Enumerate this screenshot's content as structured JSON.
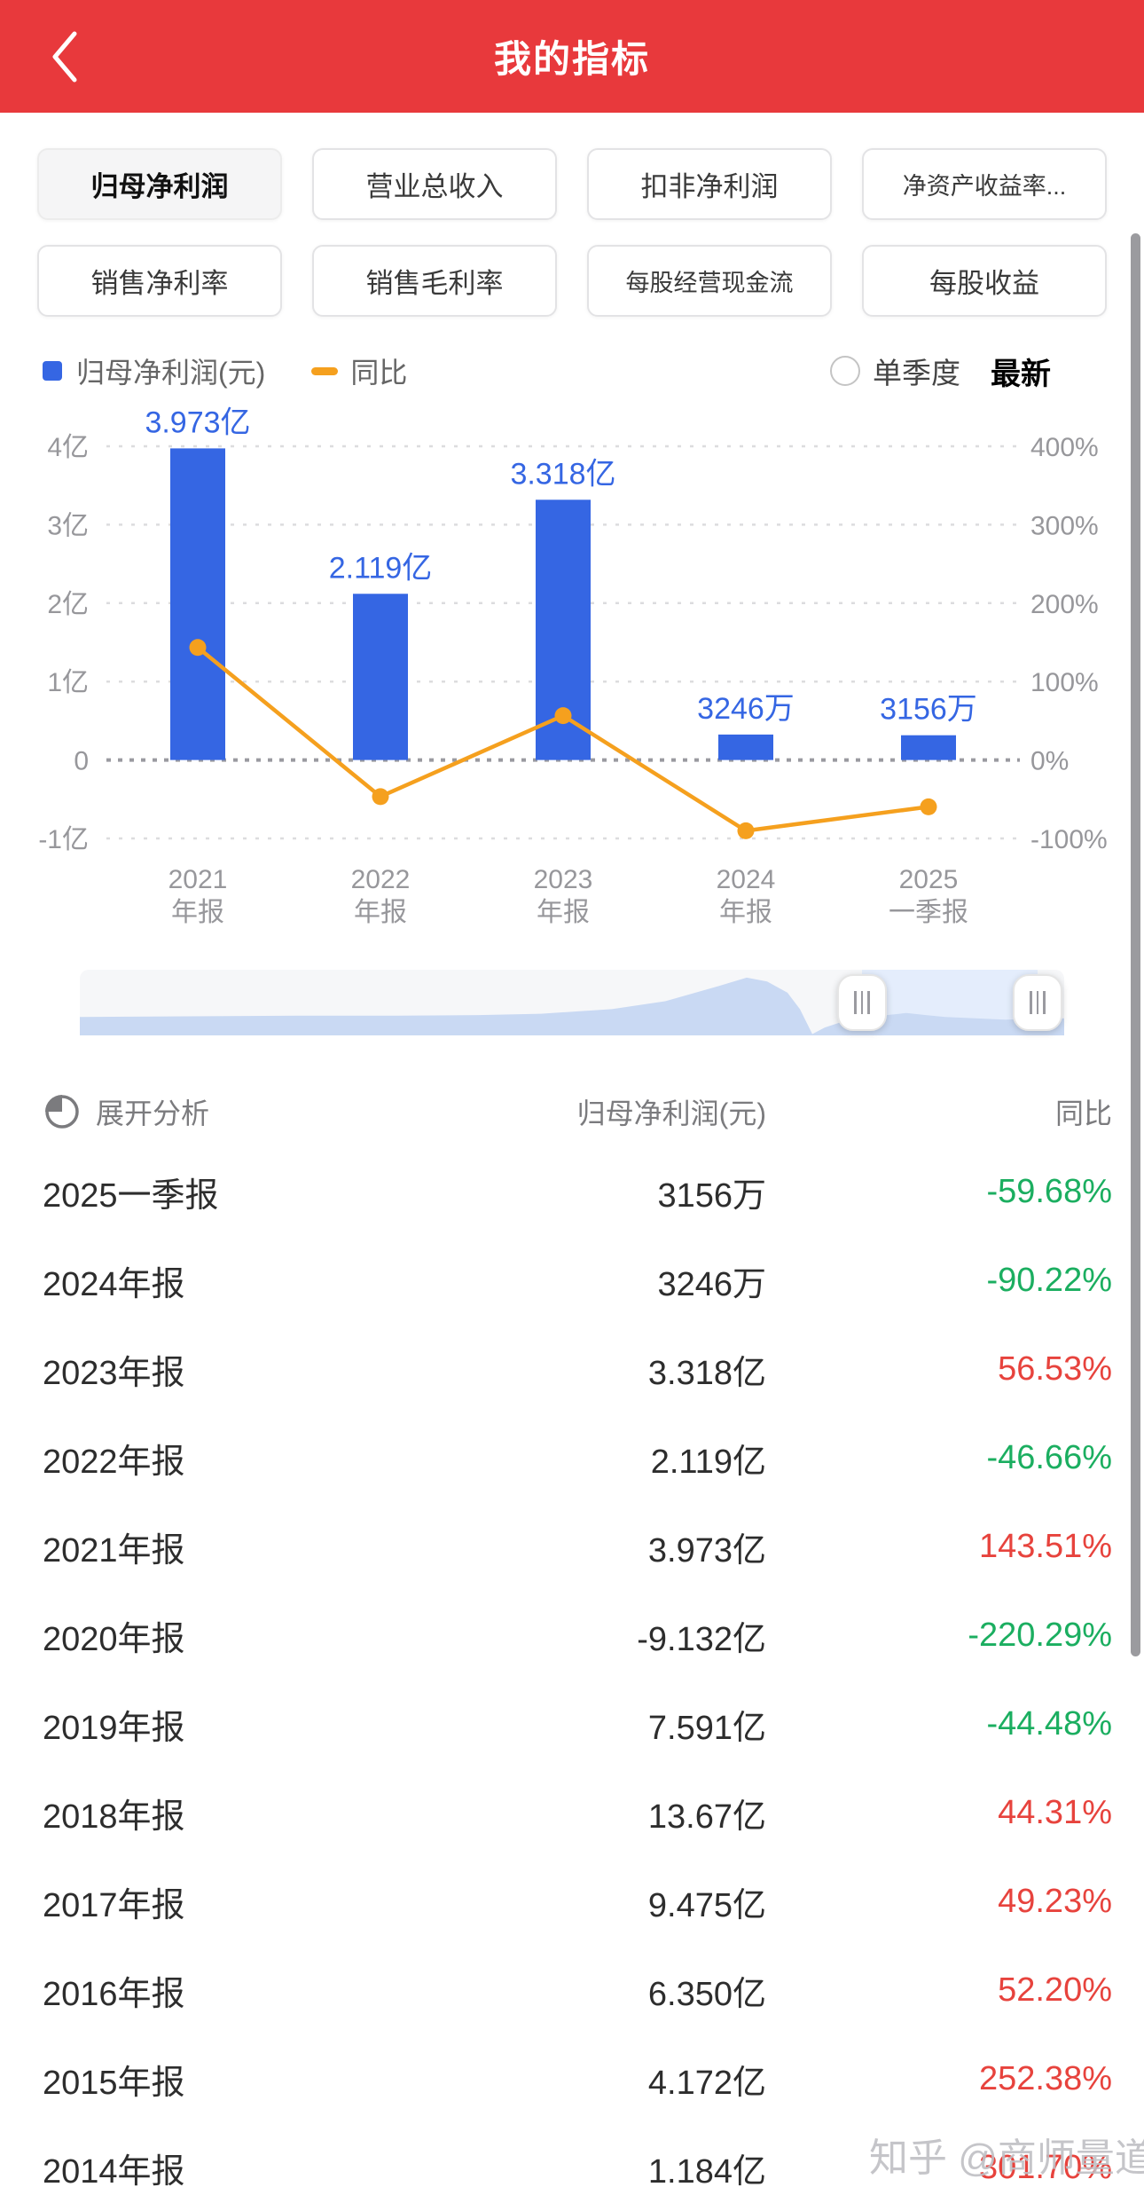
{
  "header": {
    "title": "我的指标"
  },
  "tabs": {
    "items": [
      {
        "label": "归母净利润",
        "active": true
      },
      {
        "label": "营业总收入",
        "active": false
      },
      {
        "label": "扣非净利润",
        "active": false
      },
      {
        "label": "净资产收益率...",
        "active": false
      },
      {
        "label": "销售净利率",
        "active": false
      },
      {
        "label": "销售毛利率",
        "active": false
      },
      {
        "label": "每股经营现金流",
        "active": false
      },
      {
        "label": "每股收益",
        "active": false
      }
    ]
  },
  "legend": {
    "series1_label": "归母净利润(元)",
    "series1_color": "#3566E3",
    "series2_label": "同比",
    "series2_color": "#F5A01E",
    "radio_label": "单季度",
    "radio_checked": false,
    "latest_label": "最新"
  },
  "chart_data": {
    "type": "bar",
    "categories": [
      {
        "line1": "2021",
        "line2": "年报"
      },
      {
        "line1": "2022",
        "line2": "年报"
      },
      {
        "line1": "2023",
        "line2": "年报"
      },
      {
        "line1": "2024",
        "line2": "年报"
      },
      {
        "line1": "2025",
        "line2": "一季报"
      }
    ],
    "series": [
      {
        "name": "归母净利润(元)",
        "type": "bar",
        "unit": "亿",
        "values": [
          3.973,
          2.119,
          3.318,
          0.3246,
          0.3156
        ],
        "data_labels": [
          "3.973亿",
          "2.119亿",
          "3.318亿",
          "3246万",
          "3156万"
        ],
        "color": "#3566E3"
      },
      {
        "name": "同比",
        "type": "line",
        "unit": "%",
        "values": [
          143.51,
          -46.66,
          56.53,
          -90.22,
          -59.68
        ],
        "color": "#F5A01E"
      }
    ],
    "left_axis": {
      "ticks": [
        "4亿",
        "3亿",
        "2亿",
        "1亿",
        "0",
        "-1亿"
      ],
      "max": 4,
      "min": -1
    },
    "right_axis": {
      "ticks": [
        "400%",
        "300%",
        "200%",
        "100%",
        "0%",
        "-100%"
      ],
      "max": 400,
      "min": -100
    },
    "grid": "dashed"
  },
  "table": {
    "expand_label": "展开分析",
    "col_value": "归母净利润(元)",
    "col_yoy": "同比",
    "rows": [
      {
        "period": "2025一季报",
        "value": "3156万",
        "yoy": "-59.68%",
        "dir": "down"
      },
      {
        "period": "2024年报",
        "value": "3246万",
        "yoy": "-90.22%",
        "dir": "down"
      },
      {
        "period": "2023年报",
        "value": "3.318亿",
        "yoy": "56.53%",
        "dir": "up"
      },
      {
        "period": "2022年报",
        "value": "2.119亿",
        "yoy": "-46.66%",
        "dir": "down"
      },
      {
        "period": "2021年报",
        "value": "3.973亿",
        "yoy": "143.51%",
        "dir": "up"
      },
      {
        "period": "2020年报",
        "value": "-9.132亿",
        "yoy": "-220.29%",
        "dir": "down"
      },
      {
        "period": "2019年报",
        "value": "7.591亿",
        "yoy": "-44.48%",
        "dir": "down"
      },
      {
        "period": "2018年报",
        "value": "13.67亿",
        "yoy": "44.31%",
        "dir": "up"
      },
      {
        "period": "2017年报",
        "value": "9.475亿",
        "yoy": "49.23%",
        "dir": "up"
      },
      {
        "period": "2016年报",
        "value": "6.350亿",
        "yoy": "52.20%",
        "dir": "up"
      },
      {
        "period": "2015年报",
        "value": "4.172亿",
        "yoy": "252.38%",
        "dir": "up"
      },
      {
        "period": "2014年报",
        "value": "1.184亿",
        "yoy": "301.70%",
        "dir": "up"
      }
    ]
  },
  "watermark": "知乎 @商师量道",
  "colors": {
    "up": "#E7433D",
    "down": "#1BAE60",
    "header_bg": "#E8393C",
    "bar_blue": "#3566E3",
    "line_orange": "#F5A01E"
  }
}
